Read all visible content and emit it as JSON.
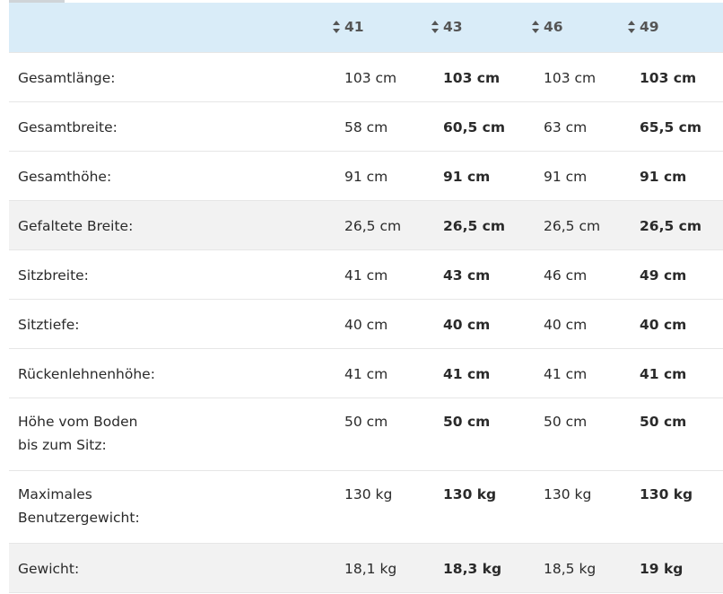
{
  "table": {
    "columns": [
      "41",
      "43",
      "46",
      "49"
    ],
    "rows": [
      {
        "label": "Gesamtlänge:",
        "values": [
          "103 cm",
          "103 cm",
          "103 cm",
          "103 cm"
        ]
      },
      {
        "label": "Gesamtbreite:",
        "values": [
          "58 cm",
          "60,5 cm",
          "63 cm",
          "65,5 cm"
        ]
      },
      {
        "label": "Gesamthöhe:",
        "values": [
          "91 cm",
          "91 cm",
          "91 cm",
          "91 cm"
        ]
      },
      {
        "label": "Gefaltete Breite:",
        "values": [
          "26,5 cm",
          "26,5 cm",
          "26,5 cm",
          "26,5 cm"
        ]
      },
      {
        "label": "Sitzbreite:",
        "values": [
          "41 cm",
          "43 cm",
          "46 cm",
          "49 cm"
        ]
      },
      {
        "label": "Sitztiefe:",
        "values": [
          "40 cm",
          "40 cm",
          "40 cm",
          "40 cm"
        ]
      },
      {
        "label": "Rückenlehnenhöhe:",
        "values": [
          "41 cm",
          "41 cm",
          "41 cm",
          "41 cm"
        ]
      },
      {
        "label": "Höhe vom Boden bis zum Sitz:",
        "label_lines": [
          "Höhe vom Boden",
          "bis zum Sitz:"
        ],
        "values": [
          "50 cm",
          "50 cm",
          "50 cm",
          "50 cm"
        ]
      },
      {
        "label": "Maximales Benutzergewicht:",
        "label_lines": [
          "Maximales",
          "Benutzergewicht:"
        ],
        "values": [
          "130 kg",
          "130 kg",
          "130 kg",
          "130 kg"
        ]
      },
      {
        "label": "Gewicht:",
        "values": [
          "18,1 kg",
          "18,3 kg",
          "18,5 kg",
          "19 kg"
        ]
      }
    ]
  },
  "icons": {
    "sort": "sort-icon"
  },
  "colors": {
    "header_bg": "#d9ecf8",
    "shade_row": "#f2f2f2"
  }
}
